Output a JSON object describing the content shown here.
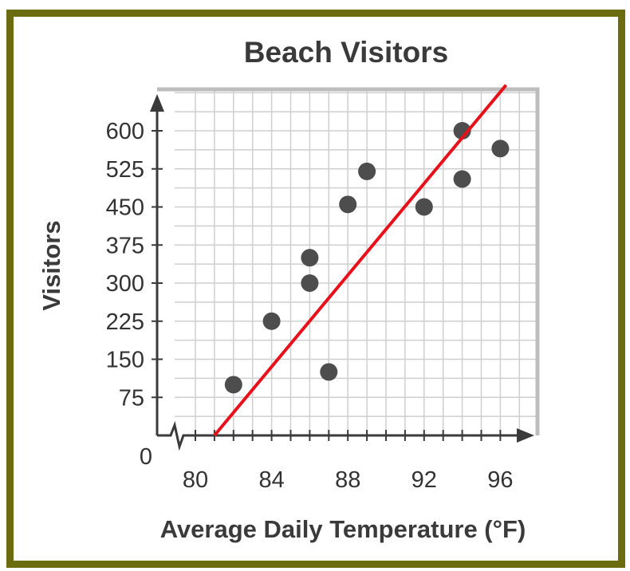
{
  "chart_data": {
    "type": "scatter",
    "title": "Beach Visitors",
    "xlabel": "Average Daily Temperature (°F)",
    "ylabel": "Visitors",
    "x_ticks": [
      "80",
      "84",
      "88",
      "92",
      "96"
    ],
    "y_ticks": [
      "75",
      "150",
      "225",
      "300",
      "375",
      "450",
      "525",
      "600"
    ],
    "origin_label": "0",
    "xlim": [
      79,
      97
    ],
    "ylim": [
      0,
      675
    ],
    "grid": true,
    "axis_break": "x",
    "points": [
      {
        "x": 82,
        "y": 100
      },
      {
        "x": 84,
        "y": 225
      },
      {
        "x": 86,
        "y": 350
      },
      {
        "x": 86,
        "y": 300
      },
      {
        "x": 87,
        "y": 125
      },
      {
        "x": 88,
        "y": 455
      },
      {
        "x": 89,
        "y": 520
      },
      {
        "x": 92,
        "y": 450
      },
      {
        "x": 94,
        "y": 600
      },
      {
        "x": 94,
        "y": 505
      },
      {
        "x": 96,
        "y": 565
      }
    ],
    "trend_line": {
      "x": [
        81,
        96.3
      ],
      "y": [
        0,
        690
      ]
    },
    "colors": {
      "points": "#4d4d4d",
      "trend_line": "#e8101a",
      "grid": "#cfcfcf",
      "frame": "#6b6b0f",
      "axis": "#3a3a3a"
    }
  }
}
